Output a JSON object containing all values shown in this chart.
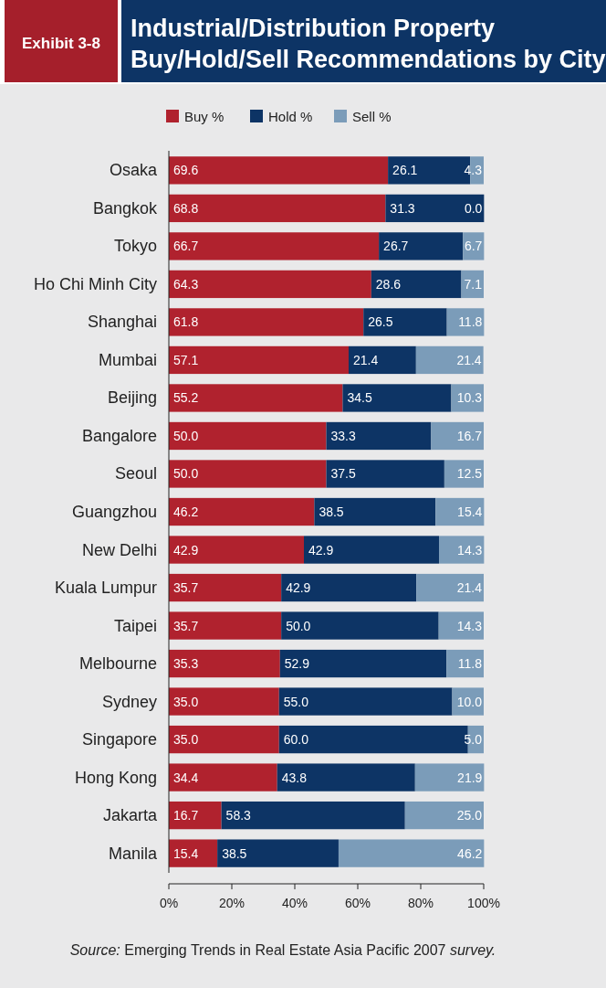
{
  "chart_data": {
    "type": "bar",
    "orientation": "horizontal",
    "stacked": true,
    "subtitle": "Exhibit 3-8",
    "title": "Industrial/Distribution Property\nBuy/Hold/Sell Recommendations by City",
    "categories": [
      "Osaka",
      "Bangkok",
      "Tokyo",
      "Ho Chi Minh City",
      "Shanghai",
      "Mumbai",
      "Beijing",
      "Bangalore",
      "Seoul",
      "Guangzhou",
      "New Delhi",
      "Kuala Lumpur",
      "Taipei",
      "Melbourne",
      "Sydney",
      "Singapore",
      "Hong Kong",
      "Jakarta",
      "Manila"
    ],
    "series": [
      {
        "name": "Buy %",
        "color": "#b0222e",
        "values": [
          69.6,
          68.8,
          66.7,
          64.3,
          61.8,
          57.1,
          55.2,
          50.0,
          50.0,
          46.2,
          42.9,
          35.7,
          35.7,
          35.3,
          35.0,
          35.0,
          34.4,
          16.7,
          15.4
        ],
        "value_labels": [
          "69.6",
          "68.8",
          "66.7",
          "64.3",
          "61.8",
          "57.1",
          "55.2",
          "50.0",
          "50.0",
          "46.2",
          "42.9",
          "35.7",
          "35.7",
          "35.3",
          "35.0",
          "35.0",
          "34.4",
          "16.7",
          "15.4"
        ]
      },
      {
        "name": "Hold %",
        "color": "#0d3465",
        "values": [
          26.1,
          31.3,
          26.7,
          28.6,
          26.5,
          21.4,
          34.5,
          33.3,
          37.5,
          38.5,
          42.9,
          42.9,
          50.0,
          52.9,
          55.0,
          60.0,
          43.8,
          58.3,
          38.5
        ],
        "value_labels": [
          "26.1",
          "31.3",
          "26.7",
          "28.6",
          "26.5",
          "21.4",
          "34.5",
          "33.3",
          "37.5",
          "38.5",
          "42.9",
          "42.9",
          "50.0",
          "52.9",
          "55.0",
          "60.0",
          "43.8",
          "58.3",
          "38.5"
        ]
      },
      {
        "name": "Sell %",
        "color": "#7b9cb9",
        "values": [
          4.3,
          0.0,
          6.7,
          7.1,
          11.8,
          21.4,
          10.3,
          16.7,
          12.5,
          15.4,
          14.3,
          21.4,
          14.3,
          11.8,
          10.0,
          5.0,
          21.9,
          25.0,
          46.2
        ],
        "value_labels": [
          "4.3",
          "0.0",
          "6.7",
          "7.1",
          "11.8",
          "21.4",
          "10.3",
          "16.7",
          "12.5",
          "15.4",
          "14.3",
          "21.4",
          "14.3",
          "11.8",
          "10.0",
          "5.0",
          "21.9",
          "25.0",
          "46.2"
        ]
      }
    ],
    "xlim": [
      0,
      100
    ],
    "xticks": [
      {
        "value": 0,
        "label": "0%"
      },
      {
        "value": 20,
        "label": "20%"
      },
      {
        "value": 40,
        "label": "40%"
      },
      {
        "value": 60,
        "label": "60%"
      },
      {
        "value": 80,
        "label": "80%"
      },
      {
        "value": 100,
        "label": "100%"
      }
    ],
    "legend": "top",
    "grid": false,
    "annotations": [
      "Source: Emerging Trends in Real Estate Asia Pacific 2007 survey."
    ]
  }
}
